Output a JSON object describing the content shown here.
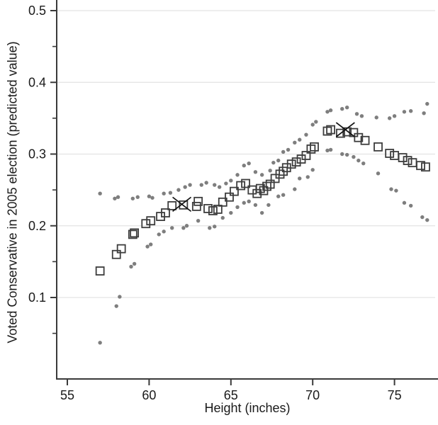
{
  "figure": {
    "xlabel": "Height (inches)",
    "ylabel": "Voted Conservative in 2005 election (predicted value)"
  },
  "colors": {
    "axis": "#3a3a3a",
    "grid": "#e3e3e3",
    "square_marker": "#3d3d3d",
    "dot_marker": "#7e7e7e",
    "x_marker": "#111111",
    "text": "#1a1a1a"
  },
  "chart_data": {
    "type": "scatter",
    "title": "",
    "xlabel": "Height (inches)",
    "ylabel": "Voted Conservative in 2005 election (predicted value)",
    "xlim": [
      54.35,
      77.65
    ],
    "ylim": [
      -0.013,
      0.515
    ],
    "x_ticks": [
      55,
      60,
      65,
      70,
      75
    ],
    "x_tick_labels": [
      "55",
      "60",
      "65",
      "70",
      "75"
    ],
    "y_ticks": [
      0.1,
      0.2,
      0.3,
      0.4,
      0.5
    ],
    "y_tick_labels": [
      "0.1",
      "0.2",
      "0.3",
      "0.4",
      "0.5"
    ],
    "y_minor_ticks": [
      0.05,
      0.15,
      0.25,
      0.35,
      0.45
    ],
    "grid": "horizontal-major",
    "legend": "none",
    "series": [
      {
        "name": "predicted-value-squares",
        "marker": "square",
        "points": [
          [
            57.0,
            0.137
          ],
          [
            58.0,
            0.16
          ],
          [
            58.3,
            0.168
          ],
          [
            59.0,
            0.188
          ],
          [
            59.1,
            0.19
          ],
          [
            59.8,
            0.203
          ],
          [
            60.1,
            0.207
          ],
          [
            60.7,
            0.213
          ],
          [
            61.0,
            0.218
          ],
          [
            61.4,
            0.228
          ],
          [
            62.1,
            0.229
          ],
          [
            62.9,
            0.227
          ],
          [
            63.0,
            0.234
          ],
          [
            63.6,
            0.224
          ],
          [
            63.9,
            0.221
          ],
          [
            64.2,
            0.223
          ],
          [
            64.5,
            0.233
          ],
          [
            64.9,
            0.24
          ],
          [
            65.2,
            0.248
          ],
          [
            65.6,
            0.256
          ],
          [
            65.9,
            0.259
          ],
          [
            66.3,
            0.25
          ],
          [
            66.6,
            0.245
          ],
          [
            66.8,
            0.252
          ],
          [
            67.0,
            0.249
          ],
          [
            67.2,
            0.255
          ],
          [
            67.4,
            0.258
          ],
          [
            67.7,
            0.266
          ],
          [
            68.0,
            0.272
          ],
          [
            68.2,
            0.276
          ],
          [
            68.4,
            0.281
          ],
          [
            68.7,
            0.286
          ],
          [
            69.0,
            0.289
          ],
          [
            69.3,
            0.293
          ],
          [
            69.6,
            0.298
          ],
          [
            69.9,
            0.307
          ],
          [
            70.1,
            0.31
          ],
          [
            70.9,
            0.332
          ],
          [
            71.1,
            0.334
          ],
          [
            71.7,
            0.329
          ],
          [
            72.1,
            0.331
          ],
          [
            72.5,
            0.33
          ],
          [
            72.8,
            0.323
          ],
          [
            73.2,
            0.319
          ],
          [
            74.0,
            0.31
          ],
          [
            74.7,
            0.301
          ],
          [
            75.0,
            0.298
          ],
          [
            75.5,
            0.295
          ],
          [
            75.8,
            0.291
          ],
          [
            76.1,
            0.288
          ],
          [
            76.6,
            0.284
          ],
          [
            76.9,
            0.282
          ]
        ]
      },
      {
        "name": "upper-confidence-dots",
        "marker": "dot",
        "points": [
          [
            57.0,
            0.245
          ],
          [
            57.9,
            0.238
          ],
          [
            58.1,
            0.24
          ],
          [
            59.0,
            0.238
          ],
          [
            59.3,
            0.24
          ],
          [
            60.0,
            0.241
          ],
          [
            60.2,
            0.239
          ],
          [
            60.9,
            0.245
          ],
          [
            61.3,
            0.246
          ],
          [
            61.8,
            0.25
          ],
          [
            62.2,
            0.254
          ],
          [
            62.5,
            0.257
          ],
          [
            63.2,
            0.257
          ],
          [
            63.5,
            0.26
          ],
          [
            64.0,
            0.257
          ],
          [
            64.3,
            0.254
          ],
          [
            64.7,
            0.259
          ],
          [
            65.0,
            0.263
          ],
          [
            65.4,
            0.271
          ],
          [
            65.8,
            0.284
          ],
          [
            66.1,
            0.287
          ],
          [
            66.5,
            0.275
          ],
          [
            66.9,
            0.271
          ],
          [
            67.4,
            0.277
          ],
          [
            67.6,
            0.288
          ],
          [
            67.9,
            0.291
          ],
          [
            68.2,
            0.303
          ],
          [
            68.5,
            0.306
          ],
          [
            68.9,
            0.316
          ],
          [
            69.2,
            0.32
          ],
          [
            69.6,
            0.327
          ],
          [
            70.0,
            0.341
          ],
          [
            70.2,
            0.345
          ],
          [
            70.9,
            0.359
          ],
          [
            71.1,
            0.361
          ],
          [
            71.8,
            0.363
          ],
          [
            72.1,
            0.365
          ],
          [
            72.7,
            0.356
          ],
          [
            73.0,
            0.353
          ],
          [
            73.9,
            0.351
          ],
          [
            74.7,
            0.35
          ],
          [
            75.0,
            0.353
          ],
          [
            75.6,
            0.359
          ],
          [
            76.0,
            0.36
          ],
          [
            76.8,
            0.357
          ],
          [
            77.0,
            0.37
          ]
        ]
      },
      {
        "name": "lower-confidence-dots",
        "marker": "dot",
        "points": [
          [
            57.0,
            0.037
          ],
          [
            58.0,
            0.088
          ],
          [
            58.2,
            0.101
          ],
          [
            58.9,
            0.143
          ],
          [
            59.1,
            0.147
          ],
          [
            59.9,
            0.171
          ],
          [
            60.1,
            0.174
          ],
          [
            60.6,
            0.188
          ],
          [
            60.9,
            0.192
          ],
          [
            61.4,
            0.197
          ],
          [
            62.1,
            0.197
          ],
          [
            62.3,
            0.2
          ],
          [
            63.0,
            0.207
          ],
          [
            63.7,
            0.197
          ],
          [
            64.0,
            0.199
          ],
          [
            64.5,
            0.211
          ],
          [
            65.0,
            0.218
          ],
          [
            65.4,
            0.226
          ],
          [
            65.8,
            0.232
          ],
          [
            66.1,
            0.234
          ],
          [
            66.5,
            0.229
          ],
          [
            66.9,
            0.218
          ],
          [
            67.3,
            0.229
          ],
          [
            67.9,
            0.241
          ],
          [
            68.2,
            0.243
          ],
          [
            68.9,
            0.251
          ],
          [
            69.2,
            0.266
          ],
          [
            69.7,
            0.268
          ],
          [
            70.0,
            0.278
          ],
          [
            70.9,
            0.305
          ],
          [
            71.1,
            0.306
          ],
          [
            71.8,
            0.3
          ],
          [
            72.1,
            0.299
          ],
          [
            72.5,
            0.296
          ],
          [
            72.8,
            0.291
          ],
          [
            73.1,
            0.287
          ],
          [
            74.0,
            0.273
          ],
          [
            74.8,
            0.251
          ],
          [
            75.1,
            0.249
          ],
          [
            75.6,
            0.232
          ],
          [
            76.0,
            0.228
          ],
          [
            76.7,
            0.212
          ],
          [
            77.0,
            0.208
          ]
        ]
      },
      {
        "name": "highlighted-x-markers",
        "marker": "x",
        "points": [
          [
            62.0,
            0.23
          ],
          [
            72.0,
            0.334
          ]
        ]
      }
    ]
  }
}
